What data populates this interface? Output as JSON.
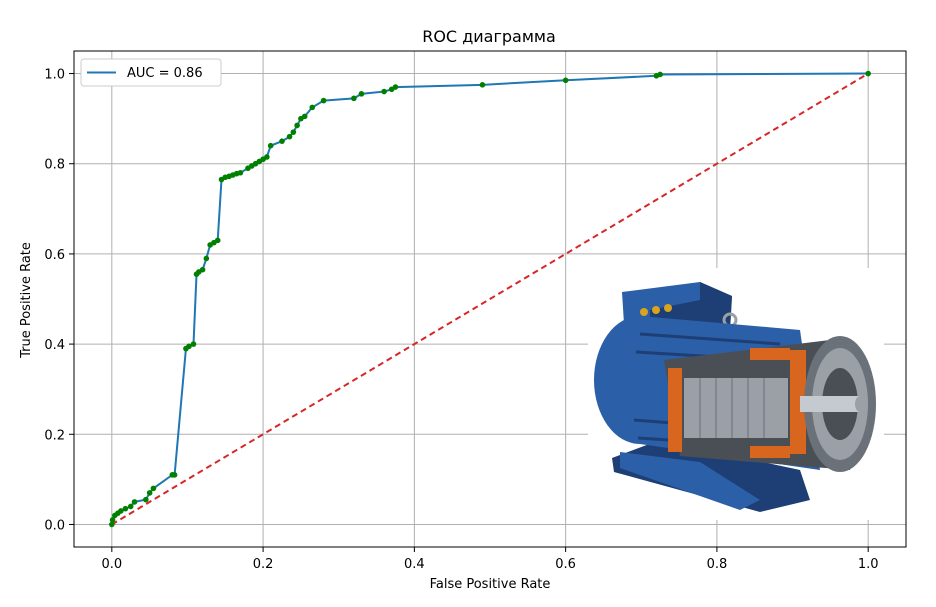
{
  "chart_data": {
    "type": "line",
    "title": "ROC диаграмма",
    "xlabel": "False Positive Rate",
    "ylabel": "True Positive Rate",
    "xlim": [
      -0.05,
      1.05
    ],
    "ylim": [
      -0.05,
      1.05
    ],
    "xticks": [
      0.0,
      0.2,
      0.4,
      0.6,
      0.8,
      1.0
    ],
    "yticks": [
      0.0,
      0.2,
      0.4,
      0.6,
      0.8,
      1.0
    ],
    "xtick_labels": [
      "0.0",
      "0.2",
      "0.4",
      "0.6",
      "0.8",
      "1.0"
    ],
    "ytick_labels": [
      "0.0",
      "0.2",
      "0.4",
      "0.6",
      "0.8",
      "1.0"
    ],
    "grid": true,
    "legend_position": "top-left",
    "series": [
      {
        "name": "AUC = 0.86",
        "color": "#1f77b4",
        "marker_color": "#008000",
        "style": "solid",
        "x": [
          0.0,
          0.001,
          0.004,
          0.008,
          0.012,
          0.018,
          0.025,
          0.03,
          0.045,
          0.05,
          0.055,
          0.08,
          0.083,
          0.098,
          0.102,
          0.108,
          0.112,
          0.115,
          0.12,
          0.125,
          0.13,
          0.135,
          0.14,
          0.145,
          0.15,
          0.155,
          0.16,
          0.165,
          0.17,
          0.18,
          0.185,
          0.19,
          0.195,
          0.2,
          0.205,
          0.21,
          0.225,
          0.235,
          0.24,
          0.245,
          0.25,
          0.255,
          0.265,
          0.28,
          0.32,
          0.33,
          0.36,
          0.37,
          0.375,
          0.49,
          0.6,
          0.72,
          0.725,
          1.0
        ],
        "y": [
          0.0,
          0.01,
          0.02,
          0.025,
          0.03,
          0.035,
          0.04,
          0.05,
          0.055,
          0.07,
          0.08,
          0.11,
          0.11,
          0.39,
          0.395,
          0.4,
          0.555,
          0.56,
          0.565,
          0.59,
          0.62,
          0.625,
          0.63,
          0.765,
          0.77,
          0.772,
          0.775,
          0.778,
          0.78,
          0.79,
          0.795,
          0.8,
          0.805,
          0.81,
          0.815,
          0.84,
          0.85,
          0.86,
          0.87,
          0.885,
          0.9,
          0.905,
          0.925,
          0.94,
          0.945,
          0.955,
          0.96,
          0.965,
          0.97,
          0.975,
          0.985,
          0.995,
          0.998,
          1.0
        ]
      },
      {
        "name": "",
        "color": "#d62728",
        "style": "dashed",
        "x": [
          0.0,
          1.0
        ],
        "y": [
          0.0,
          1.0
        ]
      }
    ]
  },
  "inset_image": {
    "icon": "electric-motor-icon",
    "colors": {
      "housing": "#2b5fa8",
      "housing_dark": "#1d3f75",
      "copper": "#d9661f",
      "steel": "#9aa0a6",
      "steel_dark": "#4a4f55"
    }
  }
}
